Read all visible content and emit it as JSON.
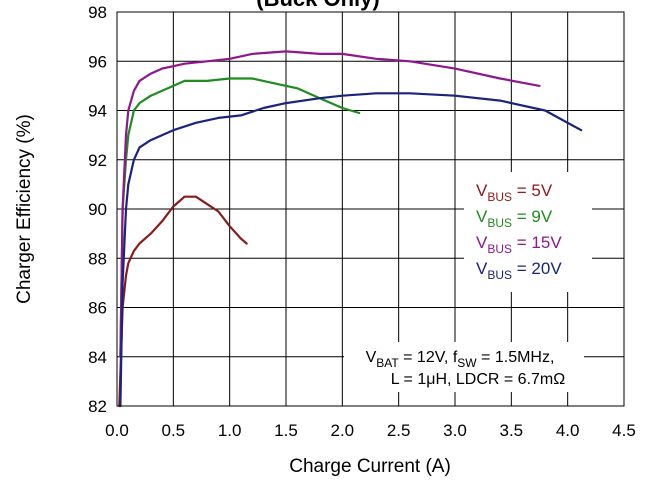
{
  "chart_data": {
    "type": "line",
    "title_fragment": "(Buck Only)",
    "xlabel": "Charge Current (A)",
    "ylabel": "Charger Efficiency (%)",
    "xlim": [
      0.0,
      4.5
    ],
    "ylim": [
      82,
      98
    ],
    "x_ticks": [
      "0.0",
      "0.5",
      "1.0",
      "1.5",
      "2.0",
      "2.5",
      "3.0",
      "3.5",
      "4.0",
      "4.5"
    ],
    "y_ticks": [
      "82",
      "84",
      "86",
      "88",
      "90",
      "92",
      "94",
      "96",
      "98"
    ],
    "grid": true,
    "legend_position": "right-middle",
    "series": [
      {
        "name": "VBUS = 5V",
        "name_parts": {
          "main": "V",
          "sub": "BUS",
          "rest": " = 5V"
        },
        "color": "#8B1A1A",
        "x": [
          0.02,
          0.05,
          0.08,
          0.1,
          0.15,
          0.2,
          0.3,
          0.4,
          0.5,
          0.6,
          0.7,
          0.8,
          0.9,
          1.0,
          1.1,
          1.15
        ],
        "y": [
          82.0,
          86.0,
          87.3,
          87.8,
          88.3,
          88.6,
          89.0,
          89.5,
          90.1,
          90.5,
          90.5,
          90.2,
          89.9,
          89.3,
          88.8,
          88.6
        ]
      },
      {
        "name": "VBUS = 9V",
        "name_parts": {
          "main": "V",
          "sub": "BUS",
          "rest": " = 9V"
        },
        "color": "#1E8C1E",
        "x": [
          0.03,
          0.05,
          0.08,
          0.1,
          0.15,
          0.2,
          0.3,
          0.4,
          0.5,
          0.6,
          0.8,
          1.0,
          1.2,
          1.4,
          1.6,
          1.8,
          2.0,
          2.15
        ],
        "y": [
          84.0,
          90.0,
          92.0,
          93.0,
          94.0,
          94.3,
          94.6,
          94.8,
          95.0,
          95.2,
          95.2,
          95.3,
          95.3,
          95.1,
          94.9,
          94.5,
          94.1,
          93.9
        ]
      },
      {
        "name": "VBUS = 15V",
        "name_parts": {
          "main": "V",
          "sub": "BUS",
          "rest": " = 15V"
        },
        "color": "#8E178E",
        "x": [
          0.03,
          0.05,
          0.08,
          0.1,
          0.15,
          0.2,
          0.3,
          0.4,
          0.5,
          0.6,
          0.8,
          1.0,
          1.2,
          1.5,
          1.8,
          2.0,
          2.3,
          2.6,
          3.0,
          3.4,
          3.75
        ],
        "y": [
          84.0,
          90.0,
          93.0,
          94.0,
          94.8,
          95.2,
          95.5,
          95.7,
          95.8,
          95.9,
          96.0,
          96.1,
          96.3,
          96.4,
          96.3,
          96.3,
          96.1,
          96.0,
          95.7,
          95.3,
          95.0
        ]
      },
      {
        "name": "VBUS = 20V",
        "name_parts": {
          "main": "V",
          "sub": "BUS",
          "rest": " = 20V"
        },
        "color": "#1A237E",
        "x": [
          0.03,
          0.05,
          0.08,
          0.1,
          0.15,
          0.2,
          0.3,
          0.5,
          0.7,
          0.9,
          1.1,
          1.3,
          1.5,
          1.8,
          2.0,
          2.3,
          2.6,
          3.0,
          3.4,
          3.8,
          4.12
        ],
        "y": [
          82.0,
          87.0,
          90.0,
          91.0,
          92.0,
          92.5,
          92.8,
          93.2,
          93.5,
          93.7,
          93.8,
          94.1,
          94.3,
          94.5,
          94.6,
          94.7,
          94.7,
          94.6,
          94.4,
          94.0,
          93.2
        ]
      }
    ],
    "annotation": {
      "line1_parts": [
        {
          "t": "V",
          "sub": false
        },
        {
          "t": "BAT",
          "sub": true
        },
        {
          "t": " = 12V, f",
          "sub": false
        },
        {
          "t": "SW",
          "sub": true
        },
        {
          "t": " = 1.5MHz,",
          "sub": false
        }
      ],
      "line2": "L = 1μH, LDCR = 6.7mΩ"
    }
  }
}
